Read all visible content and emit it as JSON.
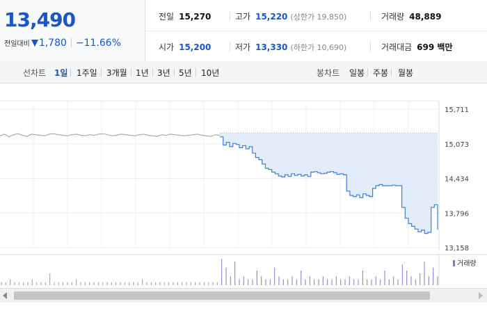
{
  "quote": {
    "price": "13,490",
    "change_label": "전일대비",
    "change": "1,780",
    "change_pct": "−11.66%",
    "prev_close_label": "전일",
    "prev_close": "15,270",
    "high_label": "고가",
    "high": "15,220",
    "upper_limit": "(상한가 19,850)",
    "volume_label": "거래량",
    "volume": "48,889",
    "open_label": "시가",
    "open": "15,200",
    "low_label": "저가",
    "low": "13,330",
    "lower_limit": "(하한가 10,690)",
    "amount_label": "거래대금",
    "amount": "699 백만"
  },
  "toolbar": {
    "line_label": "선차트",
    "line_tabs": [
      "1일",
      "1주일",
      "3개월",
      "1년",
      "3년",
      "5년",
      "10년"
    ],
    "active_index": 0,
    "candle_label": "봉차트",
    "candle_tabs": [
      "일봉",
      "주봉",
      "월봉"
    ]
  },
  "colors": {
    "accent": "#1a56c8",
    "line": "#3a7fd8",
    "fill": "#e3ecfa",
    "prev_line": "#999999",
    "volume": "#8a73c9"
  },
  "chart_data": {
    "type": "line",
    "title": "",
    "xlabel": "",
    "ylabel": "",
    "y_ticks": [
      "15,711",
      "15,073",
      "14,434",
      "13,796",
      "13,158"
    ],
    "ylim": [
      13158,
      15711
    ],
    "prev_close_reference": 15270,
    "prev_day_series": [
      15220,
      15250,
      15200,
      15240,
      15260,
      15230,
      15210,
      15250,
      15240,
      15230,
      15220,
      15250,
      15260,
      15240,
      15230,
      15220,
      15240,
      15250,
      15230,
      15220,
      15240,
      15230,
      15250,
      15260,
      15240,
      15220,
      15230,
      15250,
      15240,
      15230,
      15220,
      15240,
      15250,
      15230,
      15220,
      15210,
      15240,
      15230,
      15250,
      15240,
      15230,
      15220,
      15230,
      15240,
      15250,
      15230,
      15220,
      15210,
      15240,
      15230
    ],
    "intraday_series": [
      15200,
      15050,
      15100,
      15020,
      15080,
      15060,
      15000,
      15040,
      14980,
      15020,
      14900,
      14820,
      14780,
      14700,
      14620,
      14600,
      14550,
      14520,
      14480,
      14460,
      14500,
      14470,
      14520,
      14490,
      14510,
      14480,
      14500,
      14470,
      14550,
      14560,
      14540,
      14520,
      14530,
      14550,
      14560,
      14540,
      14510,
      14520,
      14500,
      14200,
      14120,
      14100,
      14130,
      14080,
      14150,
      14120,
      14100,
      14250,
      14300,
      14320,
      14300,
      14300,
      14300,
      14310,
      14300,
      14300,
      13900,
      13700,
      13600,
      13550,
      13500,
      13450,
      13480,
      13420,
      13440,
      13900,
      13950,
      13490
    ],
    "volume_legend": "거래량",
    "volume": [
      1,
      1,
      2,
      1,
      1,
      1,
      1,
      2,
      1,
      1,
      1,
      4,
      1,
      1,
      1,
      1,
      1,
      2,
      1,
      1,
      1,
      1,
      1,
      1,
      1,
      1,
      1,
      1,
      1,
      1,
      1,
      1,
      2,
      1,
      1,
      1,
      1,
      1,
      1,
      1,
      1,
      1,
      1,
      1,
      1,
      1,
      1,
      1,
      1,
      1,
      9,
      6,
      3,
      8,
      2,
      3,
      2,
      2,
      5,
      3,
      2,
      2,
      6,
      3,
      2,
      2,
      3,
      2,
      5,
      2,
      3,
      2,
      2,
      3,
      2,
      2,
      3,
      2,
      2,
      3,
      2,
      2,
      5,
      2,
      2,
      3,
      2,
      5,
      2,
      3,
      2,
      7,
      5,
      3,
      2,
      4,
      8,
      3,
      6,
      3
    ]
  }
}
